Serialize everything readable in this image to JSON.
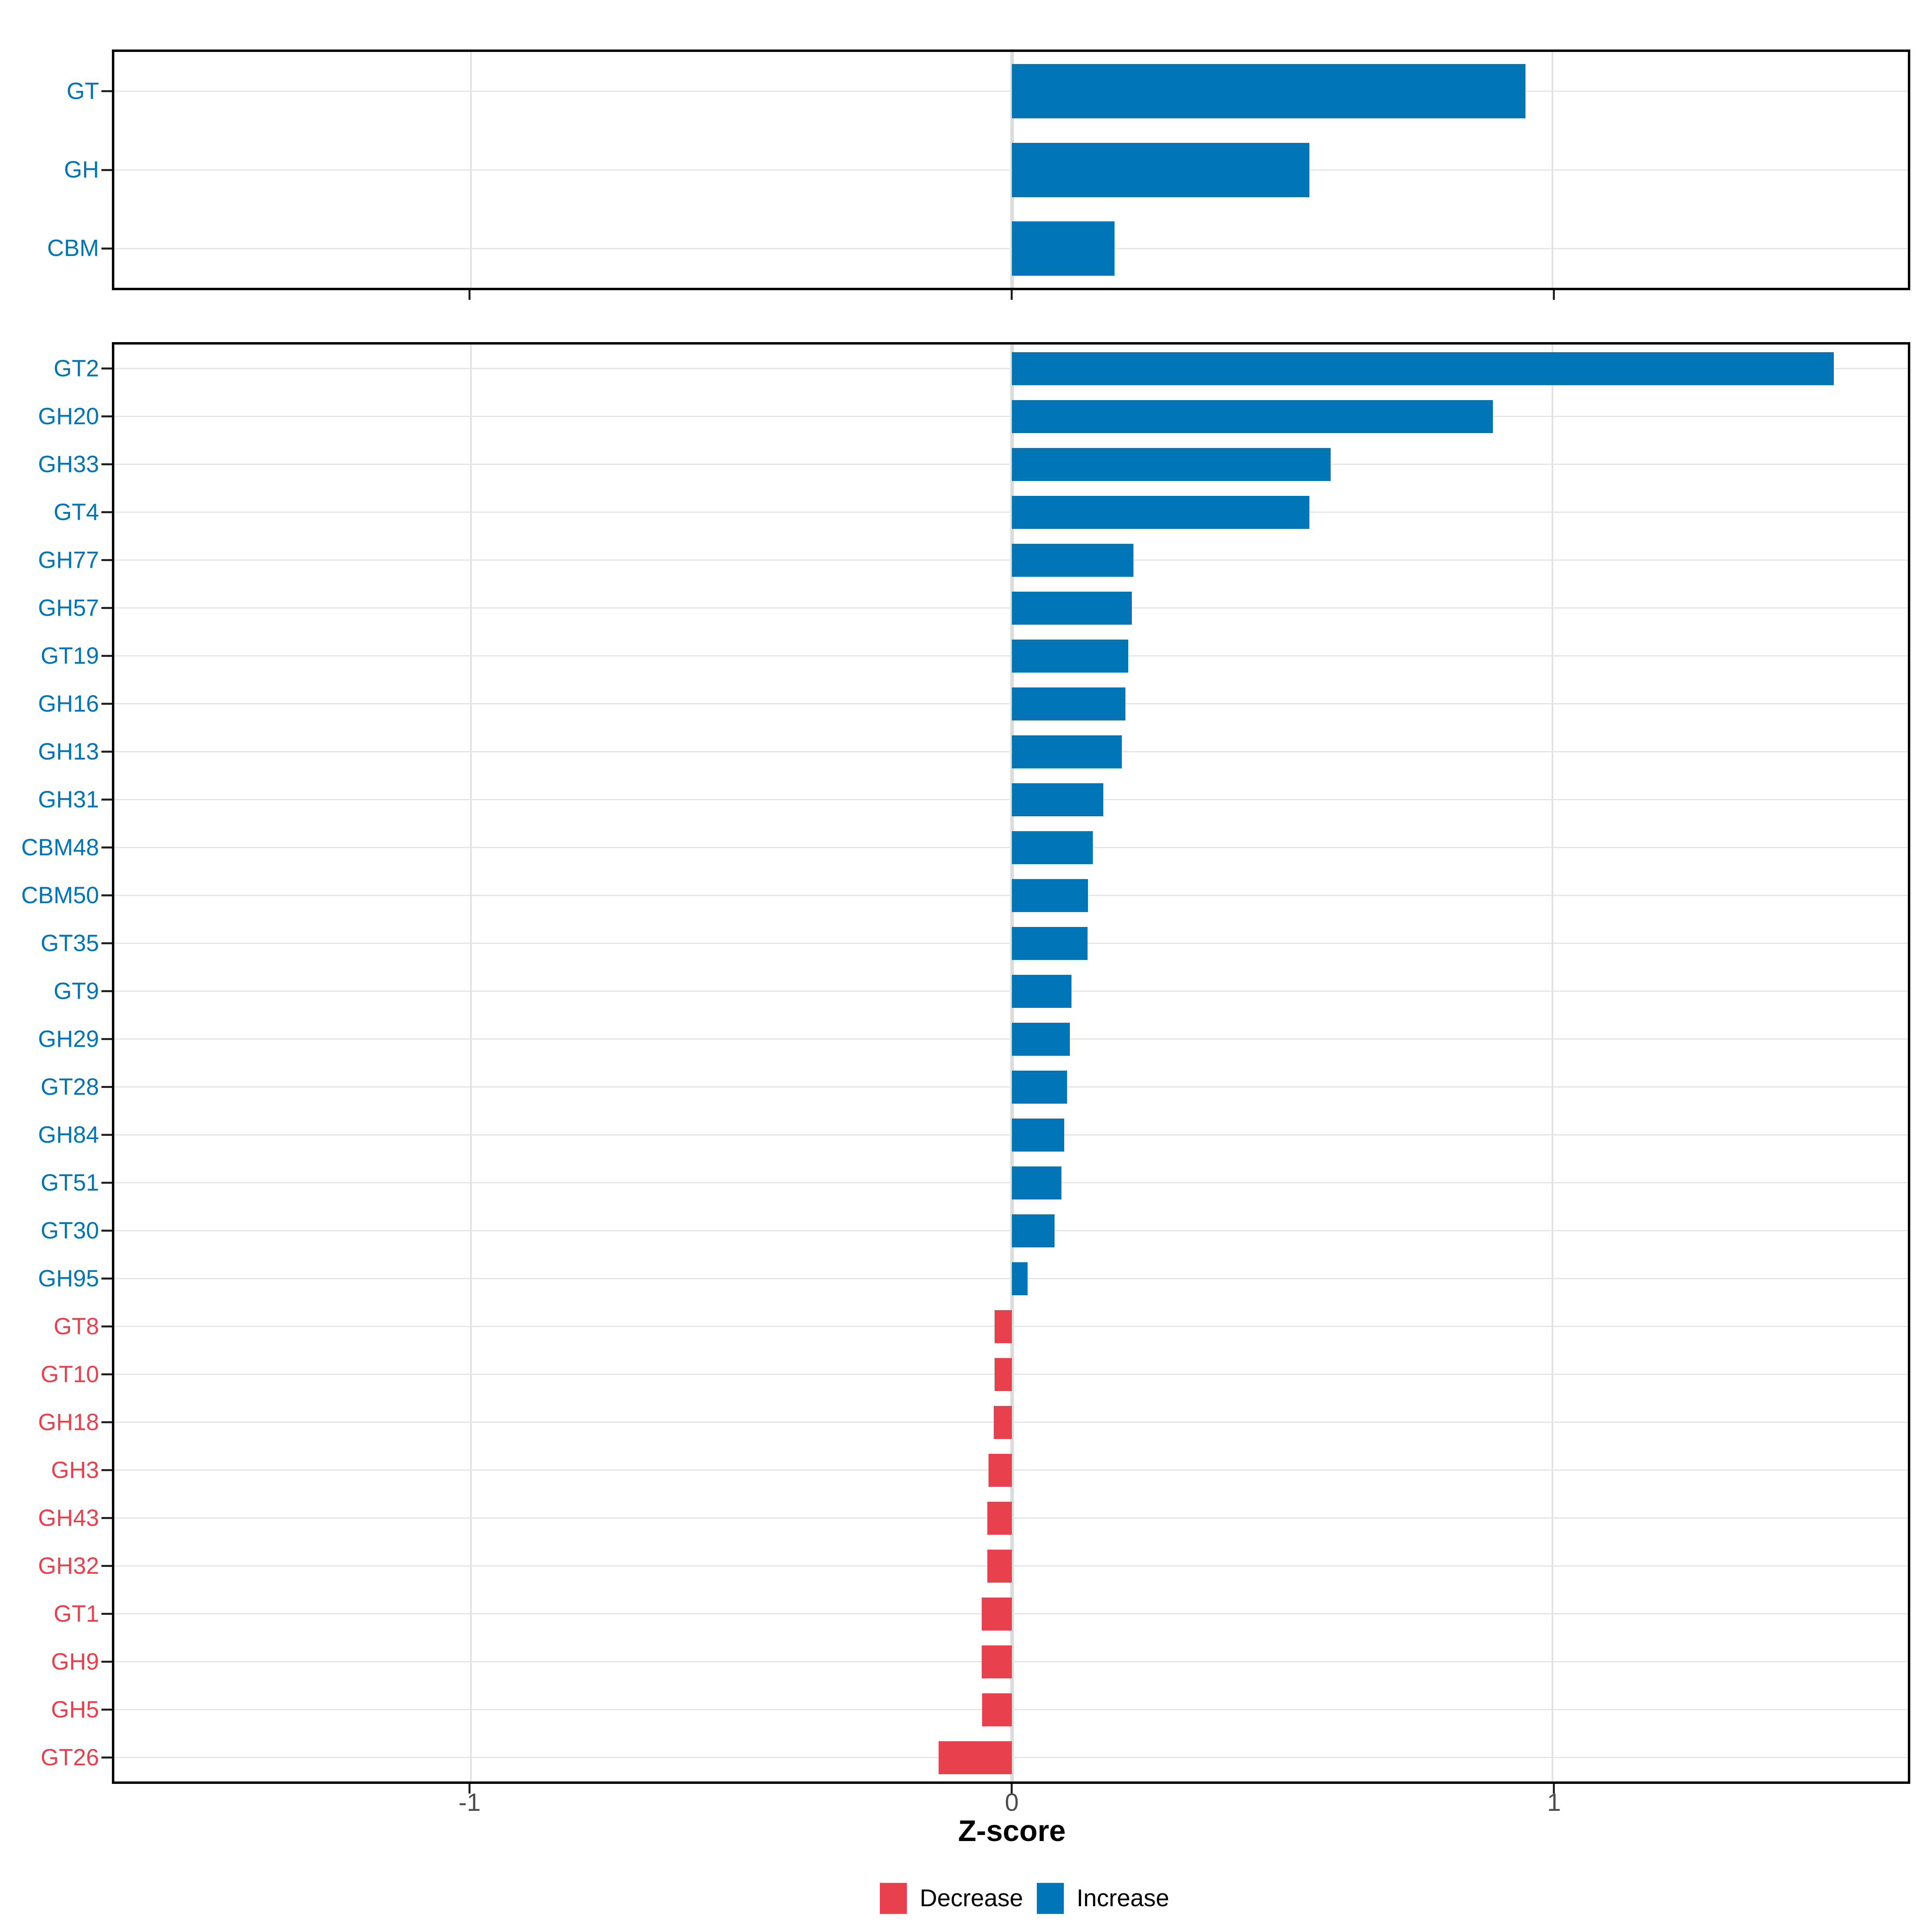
{
  "chart_data": {
    "type": "bar",
    "orientation": "horizontal",
    "title": "",
    "xlabel": "Z-score",
    "ylabel": "",
    "x_ticks": [
      "-1",
      "0",
      "1"
    ],
    "x_tick_values": [
      -1,
      0,
      1
    ],
    "xlim": [
      -1.66,
      1.66
    ],
    "grid": "on",
    "legend_position": "bottom",
    "colors": {
      "increase": "#0074B4",
      "decrease": "#E8414E"
    },
    "legend": [
      {
        "label": "Decrease",
        "color": "#E8414E"
      },
      {
        "label": "Increase",
        "color": "#0074B4"
      }
    ],
    "panels": [
      {
        "name": "cazyme-class-panel",
        "categories": [
          "GT",
          "GH",
          "CBM"
        ],
        "values": [
          0.95,
          0.55,
          0.19
        ],
        "directions": [
          "increase",
          "increase",
          "increase"
        ]
      },
      {
        "name": "cazyme-family-panel",
        "categories": [
          "GT2",
          "GH20",
          "GH33",
          "GT4",
          "GH77",
          "GH57",
          "GT19",
          "GH16",
          "GH13",
          "GH31",
          "CBM48",
          "CBM50",
          "GT35",
          "GT9",
          "GH29",
          "GT28",
          "GH84",
          "GT51",
          "GT30",
          "GH95",
          "GT8",
          "GT10",
          "GH18",
          "GH3",
          "GH43",
          "GH32",
          "GT1",
          "GH9",
          "GH5",
          "GT26"
        ],
        "values": [
          1.52,
          0.89,
          0.59,
          0.55,
          0.225,
          0.222,
          0.215,
          0.21,
          0.203,
          0.169,
          0.15,
          0.141,
          0.14,
          0.11,
          0.107,
          0.102,
          0.097,
          0.092,
          0.079,
          0.029,
          -0.032,
          -0.032,
          -0.033,
          -0.043,
          -0.045,
          -0.045,
          -0.056,
          -0.056,
          -0.055,
          -0.135
        ],
        "directions": [
          "increase",
          "increase",
          "increase",
          "increase",
          "increase",
          "increase",
          "increase",
          "increase",
          "increase",
          "increase",
          "increase",
          "increase",
          "increase",
          "increase",
          "increase",
          "increase",
          "increase",
          "increase",
          "increase",
          "increase",
          "decrease",
          "decrease",
          "decrease",
          "decrease",
          "decrease",
          "decrease",
          "decrease",
          "decrease",
          "decrease",
          "decrease"
        ]
      }
    ]
  }
}
